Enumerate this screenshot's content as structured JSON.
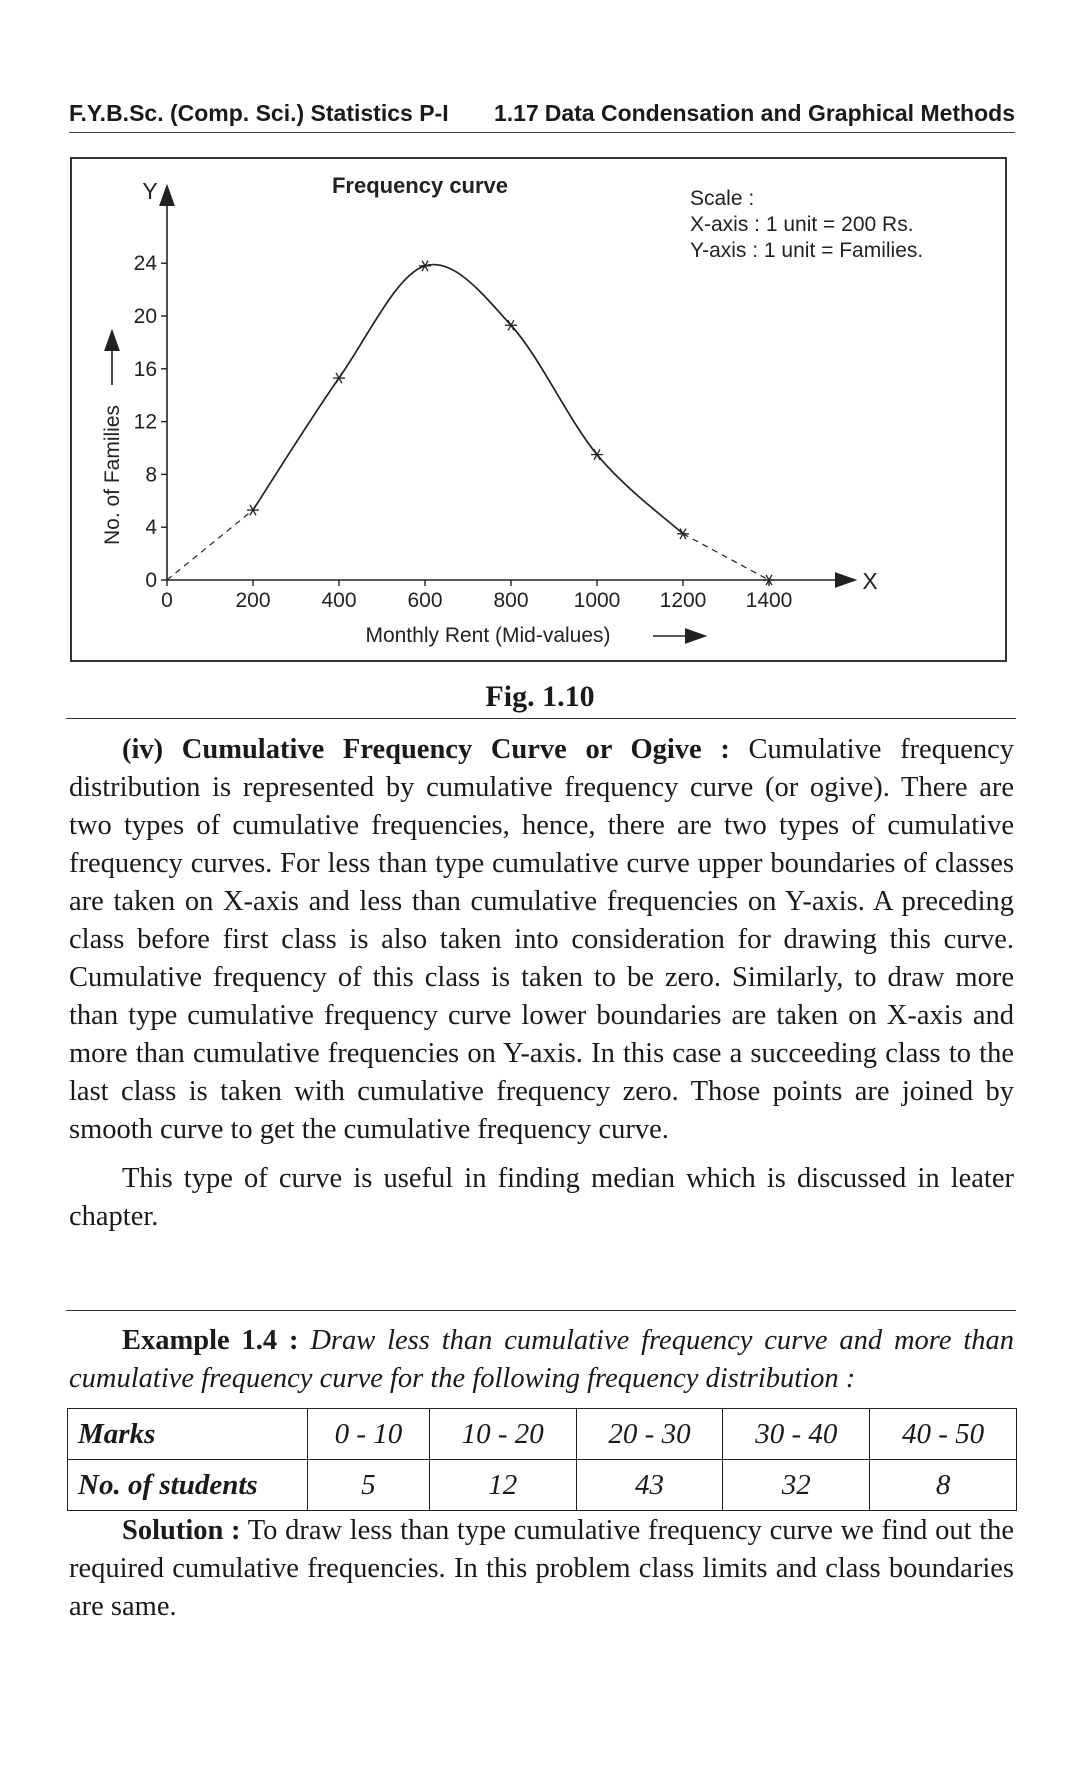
{
  "header": {
    "left": "F.Y.B.Sc. (Comp. Sci.) Statistics P-I",
    "page_number": "1.17",
    "right": "Data Condensation and Graphical Methods"
  },
  "figure": {
    "caption": "Fig. 1.10",
    "chart_data": {
      "type": "line",
      "title": "Frequency curve",
      "xlabel": "Monthly Rent (Mid-values)",
      "ylabel": "No. of Families",
      "x_axis_letter": "X",
      "y_axis_letter": "Y",
      "x_ticks": [
        "0",
        "200",
        "400",
        "600",
        "800",
        "1000",
        "1200",
        "1400"
      ],
      "y_ticks": [
        "0",
        "4",
        "8",
        "12",
        "16",
        "20",
        "24"
      ],
      "xlim": [
        0,
        1600
      ],
      "ylim": [
        0,
        27
      ],
      "scale_note": [
        "Scale :",
        "X-axis : 1 unit = 200 Rs.",
        "Y-axis : 1 unit = Families."
      ],
      "series": [
        {
          "x": [
            0,
            200,
            400,
            600,
            800,
            1000,
            1200,
            1400
          ],
          "y": [
            0,
            5.3,
            15.3,
            23.8,
            19.3,
            9.5,
            3.5,
            0
          ],
          "style": "solid curve through plotted points, dashed extension to zero at both ends",
          "marker": "star"
        }
      ],
      "grid": false,
      "colors": {
        "line": "#222222"
      }
    }
  },
  "section": {
    "heading": "(iv) Cumulative Frequency Curve or Ogive :",
    "para1": "Cumulative frequency distribution is represented by cumulative frequency curve (or ogive). There are two types of cumulative frequencies, hence, there are two types of cumulative frequency curves. For less than type cumulative curve upper boundaries of classes are taken on X-axis and less than cumulative frequencies on Y-axis. A preceding class before first class is also taken into consideration for drawing this curve. Cumulative frequency of this class is taken to be zero. Similarly, to draw more than type cumulative frequency curve lower boundaries are taken on X-axis and more than cumulative frequencies on Y-axis. In this case a succeeding class to the last class is taken with cumulative frequency zero. Those points are joined by smooth curve to get the cumulative frequency curve.",
    "para2": "This type of curve is useful in finding median which is discussed in leater chapter."
  },
  "example": {
    "label": "Example 1.4 :",
    "text": "Draw less than cumulative frequency curve and more than cumulative frequency curve for the following frequency distribution :",
    "table": {
      "row1_header": "Marks",
      "row1": [
        "0 - 10",
        "10 - 20",
        "20 - 30",
        "30 - 40",
        "40 - 50"
      ],
      "row2_header": "No. of students",
      "row2": [
        "5",
        "12",
        "43",
        "32",
        "8"
      ]
    }
  },
  "solution": {
    "label": "Solution :",
    "text": "To draw less than type cumulative frequency curve we find out the required cumulative frequencies. In this problem class limits and class boundaries are same."
  }
}
